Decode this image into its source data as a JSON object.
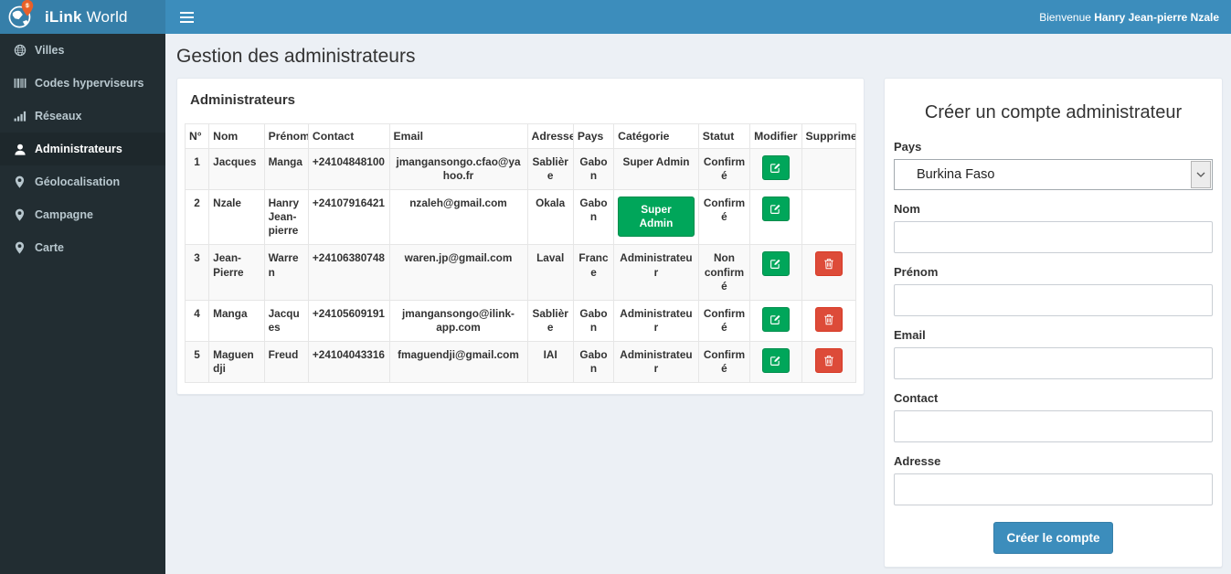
{
  "brand": {
    "bold": "iLink",
    "regular": "World"
  },
  "topbar": {
    "welcome_prefix": "Bienvenue",
    "welcome_name": "Hanry Jean-pierre Nzale"
  },
  "sidebar": {
    "items": [
      {
        "label": "Villes",
        "icon": "globe-icon",
        "active": false
      },
      {
        "label": "Codes hyperviseurs",
        "icon": "barcode-icon",
        "active": false
      },
      {
        "label": "Réseaux",
        "icon": "signal-bars-icon",
        "active": false
      },
      {
        "label": "Administrateurs",
        "icon": "user-icon",
        "active": true
      },
      {
        "label": "Géolocalisation",
        "icon": "map-marker-icon",
        "active": false
      },
      {
        "label": "Campagne",
        "icon": "map-marker-icon",
        "active": false
      },
      {
        "label": "Carte",
        "icon": "map-marker-icon",
        "active": false
      }
    ]
  },
  "page": {
    "title": "Gestion des administrateurs"
  },
  "admins": {
    "panel_title": "Administrateurs",
    "headers": [
      "N°",
      "Nom",
      "Prénom",
      "Contact",
      "Email",
      "Adresse",
      "Pays",
      "Catégorie",
      "Statut",
      "Modifier",
      "Supprimer"
    ],
    "rows": [
      {
        "num": "1",
        "nom": "Jacques",
        "prenom": "Manga",
        "contact": "+24104848100",
        "email": "jmangansongo.cfao@yahoo.fr",
        "adresse": "Sablière",
        "pays": "Gabon",
        "categorie": "Super Admin",
        "categorie_as_button": false,
        "statut": "Confirmé",
        "deletable": false
      },
      {
        "num": "2",
        "nom": "Nzale",
        "prenom": "Hanry Jean-pierre",
        "contact": "+24107916421",
        "email": "nzaleh@gmail.com",
        "adresse": "Okala",
        "pays": "Gabon",
        "categorie": "Super Admin",
        "categorie_as_button": true,
        "statut": "Confirmé",
        "deletable": false
      },
      {
        "num": "3",
        "nom": "Jean-Pierre",
        "prenom": "Warren",
        "contact": "+24106380748",
        "email": "waren.jp@gmail.com",
        "adresse": "Laval",
        "pays": "France",
        "categorie": "Administrateur",
        "categorie_as_button": false,
        "statut": "Non confirmé",
        "deletable": true
      },
      {
        "num": "4",
        "nom": "Manga",
        "prenom": "Jacques",
        "contact": "+24105609191",
        "email": "jmangansongo@ilink-app.com",
        "adresse": "Sablière",
        "pays": "Gabon",
        "categorie": "Administrateur",
        "categorie_as_button": false,
        "statut": "Confirmé",
        "deletable": true
      },
      {
        "num": "5",
        "nom": "Maguendji",
        "prenom": "Freud",
        "contact": "+24104043316",
        "email": "fmaguendji@gmail.com",
        "adresse": "IAI",
        "pays": "Gabon",
        "categorie": "Administrateur",
        "categorie_as_button": false,
        "statut": "Confirmé",
        "deletable": true
      }
    ]
  },
  "form": {
    "title": "Créer un compte administrateur",
    "country_label": "Pays",
    "country_value": "Burkina Faso",
    "fields": [
      {
        "label": "Nom",
        "name": "nom"
      },
      {
        "label": "Prénom",
        "name": "prenom"
      },
      {
        "label": "Email",
        "name": "email"
      },
      {
        "label": "Contact",
        "name": "contact"
      },
      {
        "label": "Adresse",
        "name": "adresse"
      }
    ],
    "submit_label": "Créer le compte"
  },
  "colors": {
    "navbar": "#3c8dbc",
    "logo_bg": "#367fa9",
    "sidebar_bg": "#222d32",
    "sidebar_active_bg": "#1e282c",
    "content_bg": "#ecf0f5",
    "success": "#00a65a",
    "danger": "#dd4b39",
    "primary": "#3c8dbc",
    "pin_orange": "#e8602a"
  }
}
